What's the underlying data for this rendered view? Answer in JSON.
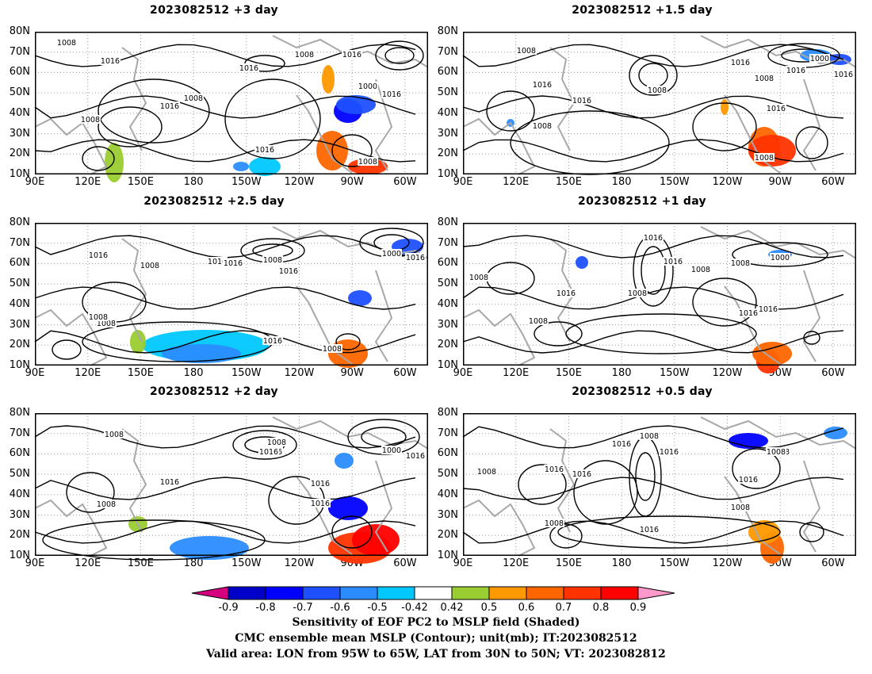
{
  "panels": [
    {
      "title": "2023082512  +3 day",
      "contour_labels": [
        "1008",
        "1016",
        "1000",
        "1008",
        "1016",
        "1016",
        "1008",
        "1016",
        "1016",
        "1008",
        "1008",
        "1016"
      ]
    },
    {
      "title": "2023082512  +1.5 day",
      "contour_labels": [
        "1008",
        "1016",
        "1016",
        "1008",
        "1000",
        "1016",
        "1008",
        "1016",
        "1016",
        "1008",
        "1016",
        "1008"
      ]
    },
    {
      "title": "2023082512  +2.5 day",
      "contour_labels": [
        "1008",
        "1016",
        "1008",
        "1016",
        "1016",
        "1008",
        "1000",
        "1016",
        "1008",
        "1016",
        "1008",
        "1016"
      ]
    },
    {
      "title": "2023082512  +1 day",
      "contour_labels": [
        "1016",
        "1008",
        "1016",
        "1008",
        "1000",
        "1016",
        "1008",
        "1016",
        "1008",
        "1008",
        "1016"
      ]
    },
    {
      "title": "2023082512  +2 day",
      "contour_labels": [
        "1008",
        "1008",
        "1016",
        "1016",
        "1000",
        "1016",
        "1016",
        "1016",
        "1008",
        "1016"
      ]
    },
    {
      "title": "2023082512  +0.5 day",
      "contour_labels": [
        "1016",
        "1008",
        "1016",
        "1008",
        "1016",
        "1008",
        "1016",
        "1016",
        "1008",
        "1008",
        "1016",
        "1008"
      ]
    }
  ],
  "y_ticks": [
    "80N",
    "70N",
    "60N",
    "50N",
    "40N",
    "30N",
    "20N",
    "10N"
  ],
  "x_ticks": [
    "90E",
    "120E",
    "150E",
    "180",
    "150W",
    "120W",
    "90W",
    "60W"
  ],
  "colorbar": {
    "labels": [
      "-0.9",
      "-0.8",
      "-0.7",
      "-0.6",
      "-0.5",
      "-0.42",
      "0.42",
      "0.5",
      "0.6",
      "0.7",
      "0.8",
      "0.9"
    ],
    "colors": [
      "#d6007f",
      "#0000c8",
      "#0000ff",
      "#1e50ff",
      "#2a8cff",
      "#00c8ff",
      "#ffffff",
      "#9acd32",
      "#ff9900",
      "#ff6600",
      "#ff3300",
      "#ff0000",
      "#ff99cc"
    ]
  },
  "captions": [
    "Sensitivity of EOF PC2 to MSLP field (Shaded)",
    "CMC ensemble mean MSLP (Contour); unit(mb); IT:2023082512",
    "Valid area: LON from 95W to 65W, LAT from 30N to 50N; VT: 2023082812"
  ]
}
